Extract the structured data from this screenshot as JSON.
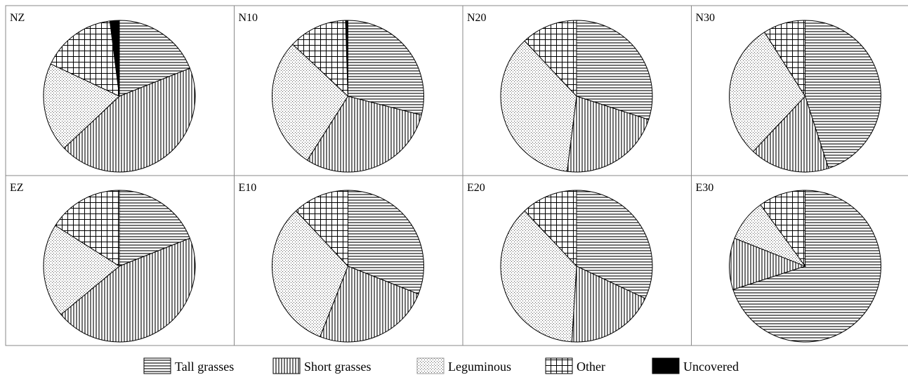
{
  "chart_data": [
    {
      "type": "pie",
      "title": "NZ",
      "slices": [
        {
          "category": "Tall grasses",
          "value": 19
        },
        {
          "category": "Short grasses",
          "value": 44
        },
        {
          "category": "Leguminous",
          "value": 19
        },
        {
          "category": "Other",
          "value": 16
        },
        {
          "category": "Uncovered",
          "value": 2
        }
      ]
    },
    {
      "type": "pie",
      "title": "N10",
      "slices": [
        {
          "category": "Tall grasses",
          "value": 29
        },
        {
          "category": "Short grasses",
          "value": 30
        },
        {
          "category": "Leguminous",
          "value": 28
        },
        {
          "category": "Other",
          "value": 12.5
        },
        {
          "category": "Uncovered",
          "value": 0.5
        }
      ]
    },
    {
      "type": "pie",
      "title": "N20",
      "slices": [
        {
          "category": "Tall grasses",
          "value": 30
        },
        {
          "category": "Short grasses",
          "value": 22
        },
        {
          "category": "Leguminous",
          "value": 36
        },
        {
          "category": "Other",
          "value": 12
        }
      ]
    },
    {
      "type": "pie",
      "title": "N30",
      "slices": [
        {
          "category": "Tall grasses",
          "value": 45
        },
        {
          "category": "Short grasses",
          "value": 17
        },
        {
          "category": "Leguminous",
          "value": 29
        },
        {
          "category": "Other",
          "value": 9
        }
      ]
    },
    {
      "type": "pie",
      "title": "EZ",
      "slices": [
        {
          "category": "Tall grasses",
          "value": 19
        },
        {
          "category": "Short grasses",
          "value": 45
        },
        {
          "category": "Leguminous",
          "value": 20
        },
        {
          "category": "Other",
          "value": 16
        }
      ]
    },
    {
      "type": "pie",
      "title": "E10",
      "slices": [
        {
          "category": "Tall grasses",
          "value": 31
        },
        {
          "category": "Short grasses",
          "value": 25
        },
        {
          "category": "Leguminous",
          "value": 32
        },
        {
          "category": "Other",
          "value": 12
        }
      ]
    },
    {
      "type": "pie",
      "title": "E20",
      "slices": [
        {
          "category": "Tall grasses",
          "value": 32
        },
        {
          "category": "Short grasses",
          "value": 19
        },
        {
          "category": "Leguminous",
          "value": 37
        },
        {
          "category": "Other",
          "value": 12
        }
      ]
    },
    {
      "type": "pie",
      "title": "E30",
      "slices": [
        {
          "category": "Tall grasses",
          "value": 70
        },
        {
          "category": "Short grasses",
          "value": 11
        },
        {
          "category": "Leguminous",
          "value": 9
        },
        {
          "category": "Other",
          "value": 10
        }
      ]
    }
  ],
  "legend": {
    "position": "bottom",
    "items": [
      {
        "category": "Tall grasses",
        "label": "Tall grasses",
        "pattern": "horizontal-lines"
      },
      {
        "category": "Short grasses",
        "label": "Short grasses",
        "pattern": "vertical-lines"
      },
      {
        "category": "Leguminous",
        "label": "Leguminous",
        "pattern": "dots"
      },
      {
        "category": "Other",
        "label": "Other",
        "pattern": "grid"
      },
      {
        "category": "Uncovered",
        "label": "Uncovered",
        "pattern": "solid-black"
      }
    ]
  },
  "colors": {
    "ink": "#000000",
    "background": "#ffffff",
    "dots": "#555555",
    "border": "#888888"
  }
}
